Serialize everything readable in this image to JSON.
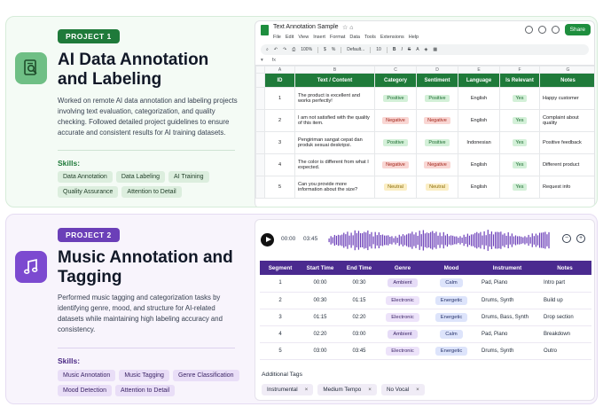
{
  "project1": {
    "badge": "PROJECT 1",
    "title": "AI Data Annotation and Labeling",
    "description": "Worked on remote AI data annotation and labeling projects involving text evaluation, categorization, and quality checking. Followed detailed project guidelines to ensure accurate and consistent results for AI training datasets.",
    "skills_label": "Skills:",
    "skills": [
      "Data Annotation",
      "Data Labeling",
      "AI Training",
      "Quality Assurance",
      "Attention to Detail"
    ],
    "icon": "document-search-icon",
    "accent": "#1f7a3a"
  },
  "sheet": {
    "doc_title": "Text Annotation Sample",
    "menu": [
      "File",
      "Edit",
      "View",
      "Insert",
      "Format",
      "Data",
      "Tools",
      "Extensions",
      "Help"
    ],
    "share_label": "Share",
    "zoom": "100%",
    "font": "Default...",
    "font_size": "10",
    "fx": "fx",
    "col_letters": [
      "A",
      "B",
      "C",
      "D",
      "E",
      "F",
      "G"
    ],
    "headers": [
      "ID",
      "Text / Content",
      "Category",
      "Sentiment",
      "Language",
      "Is Relevant",
      "Notes"
    ],
    "rows": [
      {
        "id": "1",
        "text": "The product is excellent and works perfectly!",
        "category": "Positive",
        "sentiment": "Positive",
        "language": "English",
        "relevant": "Yes",
        "notes": "Happy customer"
      },
      {
        "id": "2",
        "text": "I am not satisfied with the quality of this item.",
        "category": "Negative",
        "sentiment": "Negative",
        "language": "English",
        "relevant": "Yes",
        "notes": "Complaint about quality"
      },
      {
        "id": "3",
        "text": "Pengiriman sangat cepat dan produk sesuai deskripsi.",
        "category": "Positive",
        "sentiment": "Positive",
        "language": "Indonesian",
        "relevant": "Yes",
        "notes": "Positive feedback"
      },
      {
        "id": "4",
        "text": "The color is different from what I expected.",
        "category": "Negative",
        "sentiment": "Negative",
        "language": "English",
        "relevant": "Yes",
        "notes": "Different product"
      },
      {
        "id": "5",
        "text": "Can you provide more information about the size?",
        "category": "Neutral",
        "sentiment": "Neutral",
        "language": "English",
        "relevant": "Yes",
        "notes": "Request info"
      }
    ],
    "colors": {
      "header": "#1f7a3a",
      "positive": "#d3f0d8",
      "negative": "#f9d6d3",
      "neutral": "#fbeec4"
    }
  },
  "project2": {
    "badge": "PROJECT 2",
    "title": "Music Annotation and Tagging",
    "description": "Performed music tagging and categorization tasks by identifying genre, mood, and structure for AI-related datasets while maintaining high labeling accuracy and consistency.",
    "skills_label": "Skills:",
    "skills": [
      "Music Annotation",
      "Music Tagging",
      "Genre Classification",
      "Mood Detection",
      "Attention to Detail"
    ],
    "icon": "music-note-icon",
    "accent": "#6b3fb8"
  },
  "music": {
    "current_time": "00:00",
    "total_time": "03:45",
    "headers": [
      "Segment",
      "Start Time",
      "End Time",
      "Genre",
      "Mood",
      "Instrument",
      "Notes"
    ],
    "rows": [
      {
        "segment": "1",
        "start": "00:00",
        "end": "00:30",
        "genre": "Ambient",
        "mood": "Calm",
        "instrument": "Pad, Piano",
        "notes": "Intro part"
      },
      {
        "segment": "2",
        "start": "00:30",
        "end": "01:15",
        "genre": "Electronic",
        "mood": "Energetic",
        "instrument": "Drums, Synth",
        "notes": "Build up"
      },
      {
        "segment": "3",
        "start": "01:15",
        "end": "02:20",
        "genre": "Electronic",
        "mood": "Energetic",
        "instrument": "Drums, Bass, Synth",
        "notes": "Drop section"
      },
      {
        "segment": "4",
        "start": "02:20",
        "end": "03:00",
        "genre": "Ambient",
        "mood": "Calm",
        "instrument": "Pad, Piano",
        "notes": "Breakdown"
      },
      {
        "segment": "5",
        "start": "03:00",
        "end": "03:45",
        "genre": "Electronic",
        "mood": "Energetic",
        "instrument": "Drums, Synth",
        "notes": "Outro"
      }
    ],
    "additional_tags_label": "Additional Tags",
    "additional_tags": [
      "Instrumental",
      "Medium Tempo",
      "No Vocal"
    ],
    "remove_symbol": "×"
  }
}
